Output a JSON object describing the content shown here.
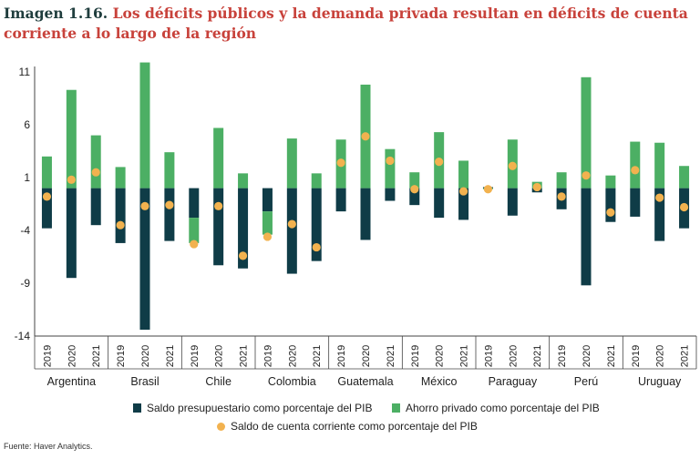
{
  "header": {
    "label": "Imagen 1.16.",
    "title": "Los déficits públicos y la demanda privada resultan en déficits de cuenta corriente a lo largo de la región"
  },
  "source": "Fuente: Haver Analytics.",
  "colors": {
    "budget": "#0f3c47",
    "private": "#4caf64",
    "current": "#f2b24f",
    "axis": "#444444"
  },
  "chart_data": {
    "type": "bar",
    "stacked": true,
    "ylim": [
      -14,
      11
    ],
    "yticks": [
      11,
      6,
      1,
      -4,
      -9,
      -14
    ],
    "countries": [
      "Argentina",
      "Brasil",
      "Chile",
      "Colombia",
      "Guatemala",
      "México",
      "Paraguay",
      "Perú",
      "Uruguay"
    ],
    "years": [
      "2019",
      "2020",
      "2021"
    ],
    "categories": [
      "Argentina 2019",
      "Argentina 2020",
      "Argentina 2021",
      "Brasil 2019",
      "Brasil 2020",
      "Brasil 2021",
      "Chile 2019",
      "Chile 2020",
      "Chile 2021",
      "Colombia 2019",
      "Colombia 2020",
      "Colombia 2021",
      "Guatemala 2019",
      "Guatemala 2020",
      "Guatemala 2021",
      "México 2019",
      "México 2020",
      "México 2021",
      "Paraguay 2019",
      "Paraguay 2020",
      "Paraguay 2021",
      "Perú 2019",
      "Perú 2020",
      "Perú 2021",
      "Uruguay 2019",
      "Uruguay 2020",
      "Uruguay 2021"
    ],
    "series": [
      {
        "name": "Saldo presupuestario como porcentaje del PIB",
        "kind": "bar",
        "values": [
          -3.8,
          -8.5,
          -3.5,
          -5.2,
          -13.4,
          -5.0,
          -2.8,
          -7.3,
          -7.6,
          -2.2,
          -8.1,
          -6.9,
          -2.2,
          -4.9,
          -1.2,
          -1.6,
          -2.8,
          -3.0,
          0.1,
          -2.6,
          -0.4,
          -2.0,
          -9.2,
          -3.2,
          -2.7,
          -5.0,
          -3.8
        ]
      },
      {
        "name": "Ahorro privado como porcentaje del PIB",
        "kind": "bar",
        "values": [
          3.0,
          9.3,
          5.0,
          2.0,
          11.9,
          3.4,
          -2.4,
          5.7,
          1.4,
          -2.2,
          4.7,
          1.4,
          4.6,
          9.8,
          3.7,
          1.5,
          5.3,
          2.6,
          -0.1,
          4.6,
          0.6,
          1.5,
          10.5,
          1.2,
          4.4,
          4.3,
          2.1
        ]
      },
      {
        "name": "Saldo de cuenta corriente como porcentaje del PIB",
        "kind": "point",
        "values": [
          -0.8,
          0.8,
          1.5,
          -3.5,
          -1.7,
          -1.6,
          -5.3,
          -1.7,
          -6.4,
          -4.6,
          -3.4,
          -5.6,
          2.4,
          4.9,
          2.6,
          -0.1,
          2.5,
          -0.3,
          -0.1,
          2.1,
          0.1,
          -0.8,
          1.2,
          -2.3,
          1.7,
          -0.9,
          -1.8
        ]
      }
    ]
  }
}
